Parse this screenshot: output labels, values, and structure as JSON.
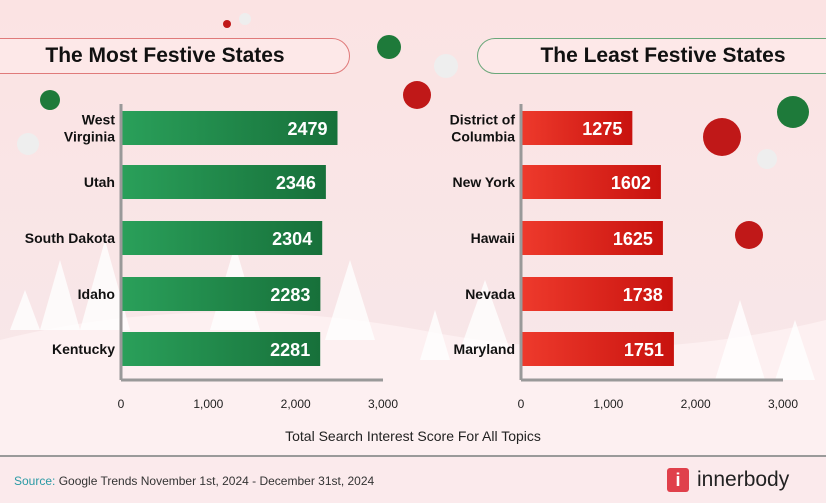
{
  "chart_data": [
    {
      "type": "bar",
      "orientation": "horizontal",
      "title": "The Most Festive States",
      "categories": [
        "West Virginia",
        "Utah",
        "South Dakota",
        "Idaho",
        "Kentucky"
      ],
      "values": [
        2479,
        2346,
        2304,
        2283,
        2281
      ],
      "xlim": [
        0,
        3000
      ],
      "xticks": [
        "0",
        "1,000",
        "2,000",
        "3,000"
      ],
      "color": "#1e8a45"
    },
    {
      "type": "bar",
      "orientation": "horizontal",
      "title": "The Least Festive States",
      "categories": [
        "District of Columbia",
        "New York",
        "Hawaii",
        "Nevada",
        "Maryland"
      ],
      "values": [
        1275,
        1602,
        1625,
        1738,
        1751
      ],
      "xlim": [
        0,
        3000
      ],
      "xticks": [
        "0",
        "1,000",
        "2,000",
        "3,000"
      ],
      "color": "#d8201c"
    }
  ],
  "xlabel": "Total Search Interest Score For All Topics",
  "footer": {
    "source_label": "Source:",
    "source_text": " Google Trends November 1st, 2024 - December 31st, 2024",
    "brand": "innerbody",
    "brand_icon": "i"
  }
}
